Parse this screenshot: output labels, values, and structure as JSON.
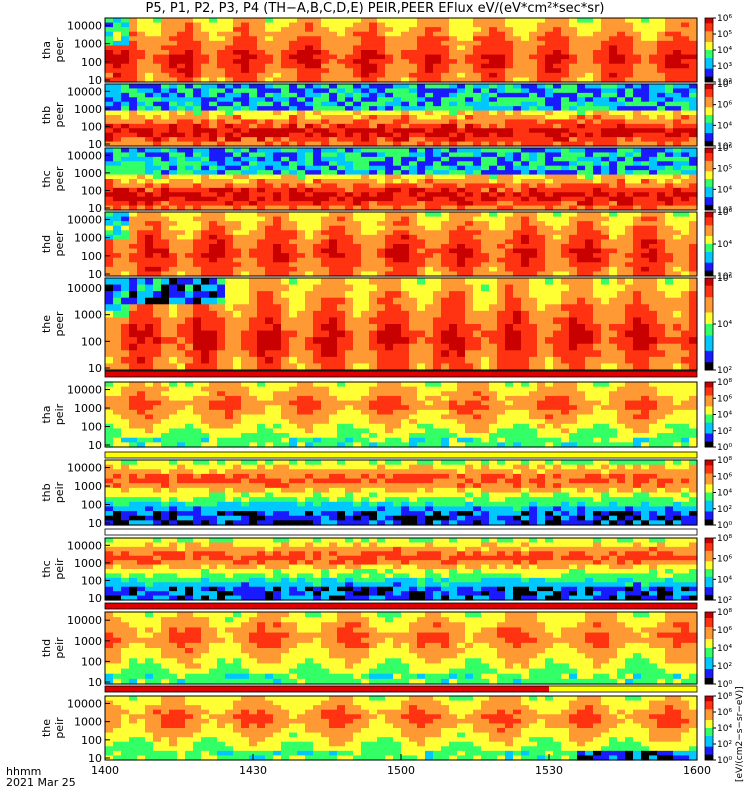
{
  "title": "P5, P1, P2, P3, P4 (TH−A,B,C,D,E) PEIR,PEER EFlux eV/(eV*cm²*sec*sr)",
  "time_axis": {
    "label_row1": "hhmm",
    "label_row2": "2021 Mar 25",
    "ticks": [
      "1400",
      "1430",
      "1500",
      "1530",
      "1600"
    ]
  },
  "colorbar_unit_label": "[eV/(cm2−s−sr−eV)]",
  "colors": {
    "colormap": [
      "#000000",
      "#1a1aff",
      "#00c8ff",
      "#33ff66",
      "#ffff33",
      "#ff9933",
      "#ff3311",
      "#c80000"
    ],
    "flag_red": "#e00000",
    "flag_yellow": "#ffff00",
    "flag_white": "#ffffff"
  },
  "chart_data": {
    "type": "heatmap",
    "x_range": [
      "14:00",
      "16:00"
    ],
    "y_scale": "log",
    "y_ticks": [
      "10",
      "100",
      "1000",
      "10000"
    ],
    "panels": [
      {
        "probe": "tha",
        "species": "peer",
        "label": [
          "tha",
          "peer"
        ],
        "colorbar_ticks": [
          "10⁶",
          "10⁵",
          "10⁴",
          "10³",
          "10²"
        ],
        "colorbar_range": [
          100,
          1000000
        ]
      },
      {
        "probe": "thb",
        "species": "peer",
        "label": [
          "thb",
          "peer"
        ],
        "colorbar_ticks": [
          "10⁸",
          "10⁶",
          "10⁴",
          "10²"
        ],
        "colorbar_range": [
          100,
          100000000
        ]
      },
      {
        "probe": "thc",
        "species": "peer",
        "label": [
          "thc",
          "peer"
        ],
        "colorbar_ticks": [
          "10⁶",
          "10⁵",
          "10⁴",
          "10³"
        ],
        "colorbar_range": [
          1000,
          1000000
        ]
      },
      {
        "probe": "thd",
        "species": "peer",
        "label": [
          "thd",
          "peer"
        ],
        "colorbar_ticks": [
          "10⁶",
          "10⁴",
          "10²"
        ],
        "colorbar_range": [
          100,
          1000000
        ]
      },
      {
        "probe": "the",
        "species": "peer",
        "label": [
          "the",
          "peer"
        ],
        "colorbar_ticks": [
          "10⁶",
          "10⁴",
          "10²"
        ],
        "colorbar_range": [
          100,
          1000000
        ]
      },
      {
        "probe": "tha",
        "species": "peir",
        "label": [
          "tha",
          "peir"
        ],
        "colorbar_ticks": [
          "10⁸",
          "10⁶",
          "10⁴",
          "10²",
          "10⁰"
        ],
        "colorbar_range": [
          1,
          100000000
        ]
      },
      {
        "probe": "thb",
        "species": "peir",
        "label": [
          "thb",
          "peir"
        ],
        "colorbar_ticks": [
          "10⁸",
          "10⁶",
          "10⁴",
          "10²",
          "10⁰"
        ],
        "colorbar_range": [
          1,
          100000000
        ]
      },
      {
        "probe": "thc",
        "species": "peir",
        "label": [
          "thc",
          "peir"
        ],
        "colorbar_ticks": [
          "10⁸",
          "10⁶",
          "10⁴",
          "10²"
        ],
        "colorbar_range": [
          100,
          100000000
        ]
      },
      {
        "probe": "thd",
        "species": "peir",
        "label": [
          "thd",
          "peir"
        ],
        "colorbar_ticks": [
          "10⁸",
          "10⁶",
          "10⁴",
          "10²",
          "10⁰"
        ],
        "colorbar_range": [
          1,
          100000000
        ]
      },
      {
        "probe": "the",
        "species": "peir",
        "label": [
          "the",
          "peir"
        ],
        "colorbar_ticks": [
          "10⁸",
          "10⁶",
          "10⁴",
          "10²",
          "10⁰"
        ],
        "colorbar_range": [
          1,
          100000000
        ]
      }
    ],
    "flag_bars": [
      {
        "after_panel": 4,
        "segments": [
          {
            "from": "14:00",
            "to": "16:00",
            "color": "red"
          }
        ]
      },
      {
        "after_panel": 5,
        "segments": [
          {
            "from": "14:00",
            "to": "16:00",
            "color": "yellow"
          }
        ]
      },
      {
        "after_panel": 6,
        "segments": [
          {
            "from": "14:00",
            "to": "16:00",
            "color": "white"
          }
        ]
      },
      {
        "after_panel": 7,
        "segments": [
          {
            "from": "14:00",
            "to": "16:00",
            "color": "red"
          }
        ]
      },
      {
        "after_panel": 8,
        "segments": [
          {
            "from": "14:00",
            "to": "15:30",
            "color": "red"
          },
          {
            "from": "15:30",
            "to": "16:00",
            "color": "yellow"
          }
        ]
      }
    ]
  }
}
